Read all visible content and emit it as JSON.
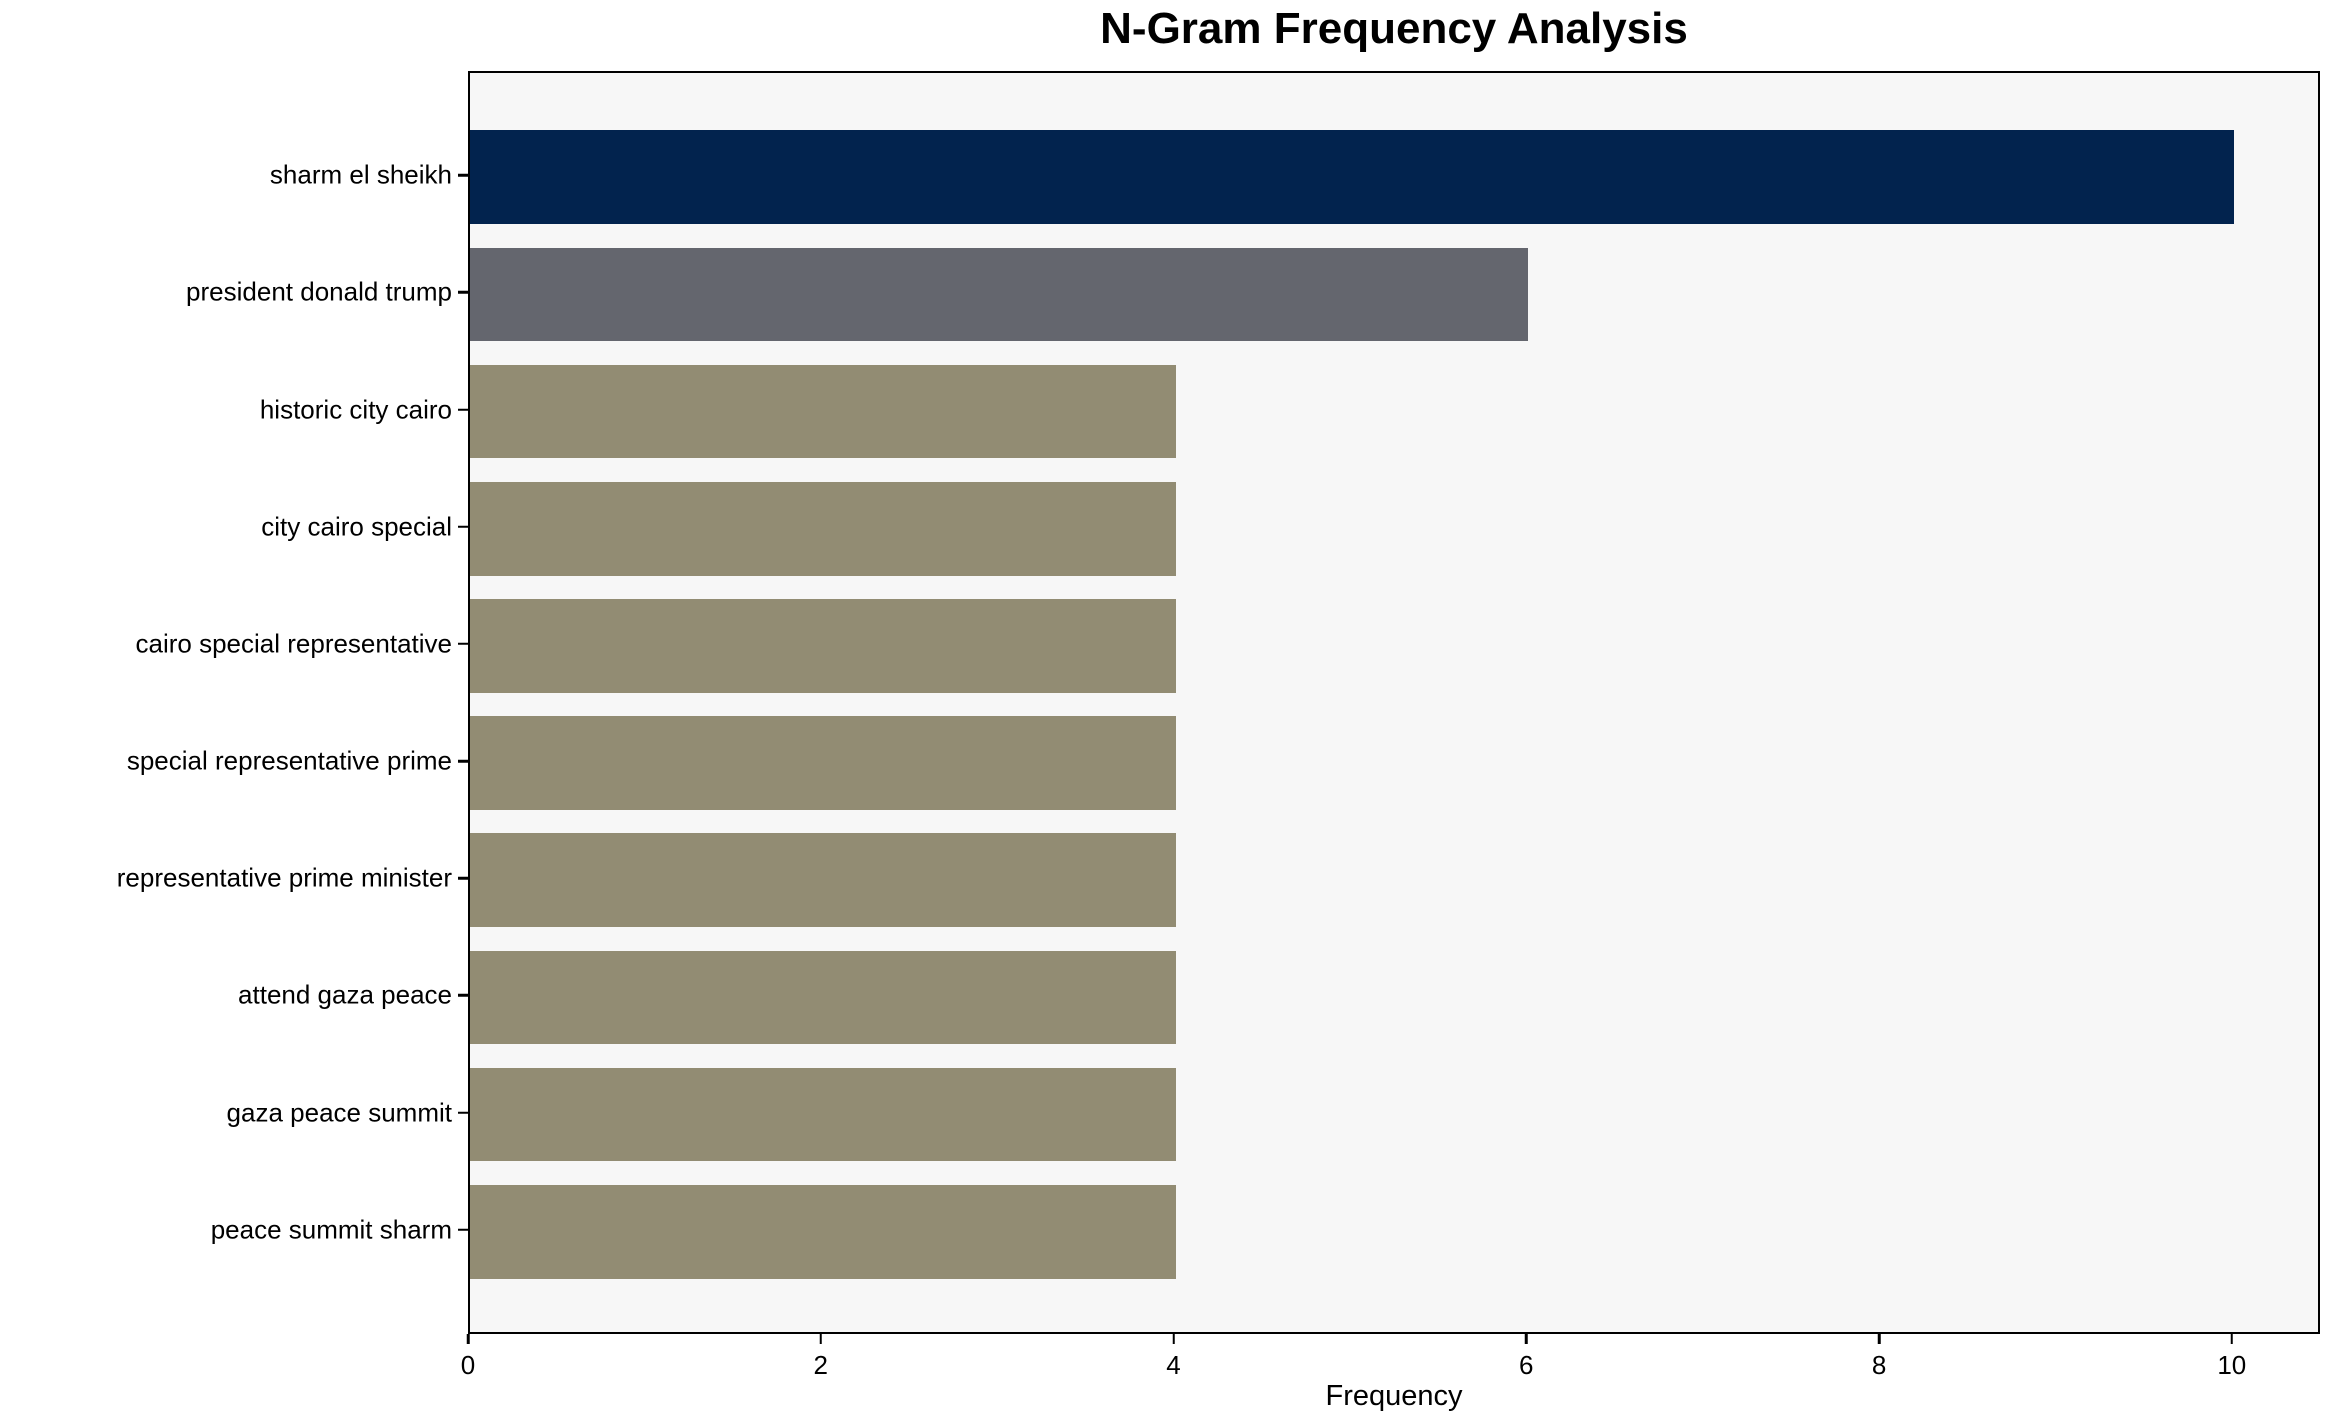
{
  "chart_data": {
    "type": "bar",
    "orientation": "horizontal",
    "title": "N-Gram Frequency Analysis",
    "xlabel": "Frequency",
    "ylabel": "",
    "categories": [
      "sharm el sheikh",
      "president donald trump",
      "historic city cairo",
      "city cairo special",
      "cairo special representative",
      "special representative prime",
      "representative prime minister",
      "attend gaza peace",
      "gaza peace summit",
      "peace summit sharm"
    ],
    "values": [
      10,
      6,
      4,
      4,
      4,
      4,
      4,
      4,
      4,
      4
    ],
    "bar_colors": [
      "#02234e",
      "#64666e",
      "#928c73",
      "#928c73",
      "#928c73",
      "#928c73",
      "#928c73",
      "#928c73",
      "#928c73",
      "#928c73"
    ],
    "xticks": [
      0,
      2,
      4,
      6,
      8,
      10
    ],
    "xtick_labels": [
      "0",
      "2",
      "4",
      "6",
      "8",
      "10"
    ],
    "xlim": [
      0,
      10.5
    ],
    "grid": false,
    "legend": null,
    "plot_background": "#f7f7f7",
    "axis_color": "#000000",
    "text_color": "#000000"
  }
}
